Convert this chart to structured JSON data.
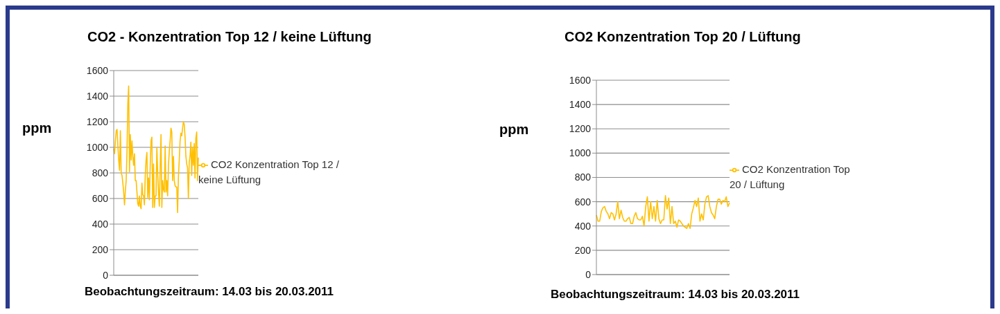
{
  "chart_data": [
    {
      "type": "line",
      "title": "CO2 -  Konzentration Top 12 / keine Lüftung",
      "ylabel": "ppm",
      "xlabel": "Beobachtungszeitraum: 14.03 bis 20.03.2011",
      "categories": [
        null,
        null,
        null,
        null,
        null,
        null,
        null,
        null,
        null,
        null,
        null,
        null,
        null,
        null,
        null,
        null,
        null,
        null,
        null,
        null,
        null,
        null,
        null,
        null,
        null,
        null,
        null,
        null,
        null,
        null,
        null,
        null,
        null,
        null,
        null,
        null,
        null,
        null,
        null,
        null,
        null,
        null,
        null,
        null,
        null,
        null,
        null,
        null,
        null,
        null,
        null,
        null,
        null,
        null,
        null,
        null,
        null,
        null,
        null,
        null,
        null,
        null,
        null,
        null,
        null,
        null,
        null,
        null,
        null,
        null,
        null,
        null,
        null,
        null,
        null,
        null,
        null,
        null,
        null,
        null,
        null,
        null,
        null,
        null,
        null,
        null,
        null,
        null,
        null,
        null,
        null,
        null,
        null,
        null,
        null,
        null,
        null,
        null,
        null,
        null,
        null,
        null,
        null
      ],
      "series": [
        {
          "name": "CO2 Konzentration Top 12 / keine Lüftung",
          "color": "#ffc000",
          "values": [
            990,
            950,
            1050,
            1130,
            1140,
            1010,
            900,
            820,
            1130,
            800,
            780,
            720,
            650,
            550,
            660,
            740,
            970,
            1340,
            1480,
            810,
            1100,
            900,
            1050,
            930,
            860,
            950,
            740,
            740,
            650,
            560,
            540,
            620,
            540,
            520,
            720,
            630,
            620,
            550,
            780,
            900,
            960,
            610,
            760,
            590,
            860,
            1050,
            1080,
            530,
            870,
            530,
            620,
            620,
            1000,
            800,
            650,
            540,
            840,
            1100,
            530,
            740,
            670,
            650,
            1010,
            650,
            740,
            620,
            860,
            970,
            1050,
            1150,
            1120,
            740,
            930,
            740,
            700,
            690,
            690,
            490,
            770,
            900,
            1050,
            1110,
            1090,
            1150,
            1200,
            1180,
            1080,
            930,
            870,
            840,
            600,
            880,
            930,
            1040,
            780,
            1000,
            860,
            1030,
            760,
            1070,
            1120,
            740,
            920
          ]
        }
      ],
      "ylim": [
        0,
        1600
      ],
      "yticks": [
        0,
        200,
        400,
        600,
        800,
        1000,
        1200,
        1400,
        1600
      ],
      "grid": "y",
      "legend": "right"
    },
    {
      "type": "line",
      "title": "CO2 Konzentration Top 20 / Lüftung",
      "ylabel": "ppm",
      "xlabel": "Beobachtungszeitraum: 14.03 bis 20.03.2011",
      "categories": [
        null,
        null,
        null,
        null,
        null,
        null,
        null,
        null,
        null,
        null,
        null,
        null,
        null,
        null,
        null,
        null,
        null,
        null,
        null,
        null,
        null,
        null,
        null,
        null,
        null,
        null,
        null,
        null,
        null,
        null,
        null,
        null,
        null,
        null,
        null,
        null,
        null,
        null,
        null,
        null,
        null,
        null,
        null,
        null,
        null,
        null,
        null,
        null,
        null,
        null,
        null,
        null,
        null,
        null,
        null,
        null,
        null,
        null,
        null,
        null,
        null,
        null,
        null,
        null,
        null,
        null,
        null,
        null,
        null,
        null,
        null,
        null,
        null,
        null,
        null,
        null,
        null,
        null,
        null,
        null,
        null,
        null
      ],
      "series": [
        {
          "name": "CO2 Konzentration Top 20 / Lüftung",
          "color": "#ffc000",
          "values": [
            490,
            440,
            440,
            520,
            550,
            560,
            520,
            500,
            460,
            510,
            500,
            450,
            500,
            600,
            460,
            530,
            470,
            440,
            440,
            460,
            470,
            420,
            420,
            480,
            510,
            460,
            450,
            450,
            480,
            400,
            560,
            640,
            440,
            600,
            460,
            560,
            440,
            610,
            460,
            420,
            450,
            450,
            650,
            540,
            630,
            420,
            560,
            420,
            440,
            390,
            450,
            440,
            420,
            400,
            390,
            380,
            420,
            380,
            500,
            550,
            610,
            560,
            630,
            440,
            500,
            450,
            580,
            640,
            650,
            560,
            510,
            490,
            460,
            560,
            620,
            620,
            580,
            610,
            600,
            640,
            560,
            590
          ]
        }
      ],
      "ylim": [
        0,
        1600
      ],
      "yticks": [
        0,
        200,
        400,
        600,
        800,
        1000,
        1200,
        1400,
        1600
      ],
      "grid": "y",
      "legend": "right"
    }
  ]
}
